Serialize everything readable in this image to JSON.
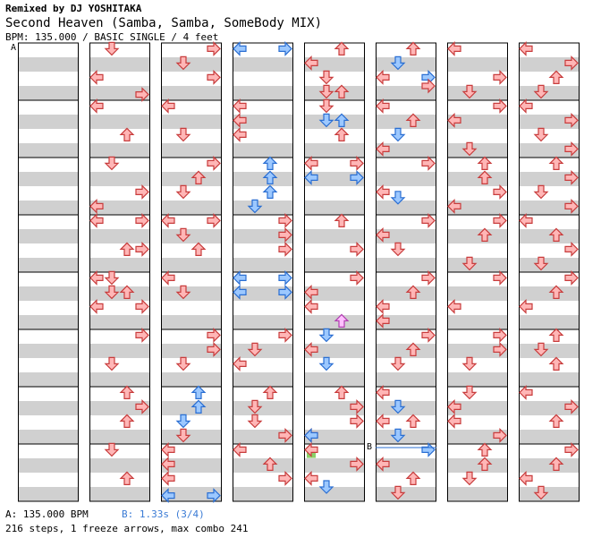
{
  "header": {
    "remix_line": "Remixed by DJ YOSHITAKA",
    "song_title": "Second Heaven (Samba, Samba, SomeBody MIX)",
    "chart_info": "BPM: 135.000 / BASIC SINGLE / 4 feet"
  },
  "markers": {
    "a": "A",
    "b": "B"
  },
  "footer": {
    "bpm_note": "A: 135.000 BPM",
    "stop_note": "B: 1.33s (3/4)",
    "stats": "216 steps, 1 freeze arrows, max combo 241"
  },
  "colors": {
    "quarter_fill": "#ffb6b6",
    "quarter_stroke": "#c83c3c",
    "eighth_fill": "#9cc8ff",
    "eighth_stroke": "#2a6ed2",
    "sixteenth_fill": "#ffc0ff",
    "sixteenth_stroke": "#b040b0",
    "freeze": "#8bd16a",
    "stripe": "#d0d0d0"
  },
  "icons": {
    "left": "left-arrow-icon",
    "down": "down-arrow-icon",
    "up": "up-arrow-icon",
    "right": "right-arrow-icon"
  },
  "chart_data": {
    "type": "step-chart",
    "columns": 8,
    "measures_per_column": 8,
    "lanes": [
      "left",
      "down",
      "up",
      "right"
    ],
    "note_format": "[column, measure_position, lane, kind]",
    "notes": [
      [
        1,
        0.1,
        "down",
        "q"
      ],
      [
        1,
        0.6,
        "left",
        "q"
      ],
      [
        1,
        0.9,
        "right",
        "q"
      ],
      [
        1,
        1.1,
        "left",
        "q"
      ],
      [
        1,
        1.6,
        "up",
        "q"
      ],
      [
        1,
        2.1,
        "down",
        "q"
      ],
      [
        1,
        2.6,
        "right",
        "q"
      ],
      [
        1,
        2.85,
        "left",
        "q"
      ],
      [
        1,
        3.1,
        "left",
        "q"
      ],
      [
        1,
        3.1,
        "right",
        "q"
      ],
      [
        1,
        3.6,
        "up",
        "q"
      ],
      [
        1,
        3.6,
        "right",
        "q"
      ],
      [
        1,
        4.1,
        "left",
        "q"
      ],
      [
        1,
        4.1,
        "down",
        "q"
      ],
      [
        1,
        4.35,
        "down",
        "q"
      ],
      [
        1,
        4.35,
        "up",
        "q"
      ],
      [
        1,
        4.6,
        "left",
        "q"
      ],
      [
        1,
        4.6,
        "right",
        "q"
      ],
      [
        1,
        5.1,
        "right",
        "q"
      ],
      [
        1,
        5.6,
        "down",
        "q"
      ],
      [
        1,
        6.1,
        "up",
        "q"
      ],
      [
        1,
        6.35,
        "right",
        "q"
      ],
      [
        1,
        6.6,
        "up",
        "q"
      ],
      [
        1,
        7.1,
        "down",
        "q"
      ],
      [
        1,
        7.6,
        "up",
        "q"
      ],
      [
        2,
        0.1,
        "right",
        "q"
      ],
      [
        2,
        0.35,
        "down",
        "q"
      ],
      [
        2,
        0.6,
        "right",
        "q"
      ],
      [
        2,
        1.1,
        "left",
        "q"
      ],
      [
        2,
        1.6,
        "down",
        "q"
      ],
      [
        2,
        2.1,
        "right",
        "q"
      ],
      [
        2,
        2.35,
        "up",
        "q"
      ],
      [
        2,
        2.6,
        "down",
        "q"
      ],
      [
        2,
        3.1,
        "left",
        "q"
      ],
      [
        2,
        3.1,
        "right",
        "q"
      ],
      [
        2,
        3.35,
        "down",
        "q"
      ],
      [
        2,
        3.6,
        "up",
        "q"
      ],
      [
        2,
        4.1,
        "left",
        "q"
      ],
      [
        2,
        4.35,
        "down",
        "q"
      ],
      [
        2,
        5.1,
        "right",
        "q"
      ],
      [
        2,
        5.35,
        "right",
        "q"
      ],
      [
        2,
        5.6,
        "down",
        "q"
      ],
      [
        2,
        6.1,
        "up",
        "e"
      ],
      [
        2,
        6.35,
        "up",
        "e"
      ],
      [
        2,
        6.6,
        "down",
        "e"
      ],
      [
        2,
        6.85,
        "down",
        "q"
      ],
      [
        2,
        7.1,
        "left",
        "q"
      ],
      [
        2,
        7.35,
        "left",
        "q"
      ],
      [
        2,
        7.6,
        "left",
        "q"
      ],
      [
        2,
        7.9,
        "left",
        "e"
      ],
      [
        2,
        7.9,
        "right",
        "e"
      ],
      [
        3,
        0.1,
        "left",
        "e"
      ],
      [
        3,
        0.1,
        "right",
        "e"
      ],
      [
        3,
        1.1,
        "left",
        "q"
      ],
      [
        3,
        1.35,
        "left",
        "q"
      ],
      [
        3,
        1.6,
        "left",
        "q"
      ],
      [
        3,
        2.1,
        "up",
        "e"
      ],
      [
        3,
        2.35,
        "up",
        "e"
      ],
      [
        3,
        2.6,
        "up",
        "e"
      ],
      [
        3,
        2.85,
        "down",
        "e"
      ],
      [
        3,
        3.1,
        "right",
        "q"
      ],
      [
        3,
        3.35,
        "right",
        "q"
      ],
      [
        3,
        3.6,
        "right",
        "q"
      ],
      [
        3,
        4.1,
        "left",
        "e"
      ],
      [
        3,
        4.1,
        "right",
        "e"
      ],
      [
        3,
        4.35,
        "left",
        "e"
      ],
      [
        3,
        4.35,
        "right",
        "e"
      ],
      [
        3,
        5.1,
        "right",
        "q"
      ],
      [
        3,
        5.35,
        "down",
        "q"
      ],
      [
        3,
        5.6,
        "left",
        "q"
      ],
      [
        3,
        6.1,
        "up",
        "q"
      ],
      [
        3,
        6.35,
        "down",
        "q"
      ],
      [
        3,
        6.6,
        "down",
        "q"
      ],
      [
        3,
        6.85,
        "right",
        "q"
      ],
      [
        3,
        7.1,
        "left",
        "q"
      ],
      [
        3,
        7.35,
        "up",
        "q"
      ],
      [
        3,
        7.6,
        "right",
        "q"
      ],
      [
        4,
        0.1,
        "up",
        "q"
      ],
      [
        4,
        0.35,
        "left",
        "q"
      ],
      [
        4,
        0.6,
        "down",
        "q"
      ],
      [
        4,
        0.85,
        "down",
        "q"
      ],
      [
        4,
        0.85,
        "up",
        "q"
      ],
      [
        4,
        1.1,
        "down",
        "q"
      ],
      [
        4,
        1.35,
        "down",
        "e"
      ],
      [
        4,
        1.35,
        "up",
        "e"
      ],
      [
        4,
        1.6,
        "up",
        "q"
      ],
      [
        4,
        2.1,
        "left",
        "q"
      ],
      [
        4,
        2.1,
        "right",
        "q"
      ],
      [
        4,
        2.35,
        "left",
        "e"
      ],
      [
        4,
        2.35,
        "right",
        "e"
      ],
      [
        4,
        3.1,
        "up",
        "q"
      ],
      [
        4,
        3.6,
        "right",
        "q"
      ],
      [
        4,
        4.1,
        "right",
        "q"
      ],
      [
        4,
        4.35,
        "left",
        "q"
      ],
      [
        4,
        4.6,
        "left",
        "q"
      ],
      [
        4,
        4.85,
        "up",
        "s"
      ],
      [
        4,
        5.1,
        "down",
        "e"
      ],
      [
        4,
        5.35,
        "left",
        "q"
      ],
      [
        4,
        5.6,
        "down",
        "e"
      ],
      [
        4,
        6.1,
        "up",
        "q"
      ],
      [
        4,
        6.35,
        "right",
        "q"
      ],
      [
        4,
        6.6,
        "right",
        "q"
      ],
      [
        4,
        6.85,
        "left",
        "q"
      ],
      [
        4,
        6.85,
        "left",
        "e"
      ],
      [
        4,
        7.1,
        "left",
        "q"
      ],
      [
        4,
        7.35,
        "right",
        "q"
      ],
      [
        4,
        7.6,
        "left",
        "q"
      ],
      [
        4,
        7.75,
        "down",
        "e"
      ],
      [
        5,
        0.1,
        "up",
        "q"
      ],
      [
        5,
        0.35,
        "down",
        "e"
      ],
      [
        5,
        0.6,
        "left",
        "q"
      ],
      [
        5,
        0.6,
        "right",
        "e"
      ],
      [
        5,
        0.75,
        "right",
        "q"
      ],
      [
        5,
        1.1,
        "left",
        "q"
      ],
      [
        5,
        1.35,
        "up",
        "q"
      ],
      [
        5,
        1.6,
        "down",
        "e"
      ],
      [
        5,
        1.85,
        "left",
        "q"
      ],
      [
        5,
        2.1,
        "right",
        "q"
      ],
      [
        5,
        2.6,
        "left",
        "q"
      ],
      [
        5,
        2.7,
        "down",
        "e"
      ],
      [
        5,
        3.1,
        "right",
        "q"
      ],
      [
        5,
        3.35,
        "left",
        "q"
      ],
      [
        5,
        3.6,
        "down",
        "q"
      ],
      [
        5,
        4.1,
        "right",
        "q"
      ],
      [
        5,
        4.35,
        "up",
        "q"
      ],
      [
        5,
        4.6,
        "left",
        "q"
      ],
      [
        5,
        4.85,
        "left",
        "q"
      ],
      [
        5,
        5.1,
        "right",
        "q"
      ],
      [
        5,
        5.35,
        "up",
        "q"
      ],
      [
        5,
        5.6,
        "down",
        "q"
      ],
      [
        5,
        6.1,
        "left",
        "q"
      ],
      [
        5,
        6.35,
        "down",
        "e"
      ],
      [
        5,
        6.6,
        "up",
        "q"
      ],
      [
        5,
        6.6,
        "left",
        "q"
      ],
      [
        5,
        6.85,
        "down",
        "e"
      ],
      [
        5,
        7.1,
        "right",
        "e"
      ],
      [
        5,
        7.35,
        "left",
        "q"
      ],
      [
        5,
        7.6,
        "up",
        "q"
      ],
      [
        5,
        7.85,
        "down",
        "q"
      ],
      [
        6,
        0.1,
        "left",
        "q"
      ],
      [
        6,
        0.6,
        "right",
        "q"
      ],
      [
        6,
        0.85,
        "down",
        "q"
      ],
      [
        6,
        1.1,
        "right",
        "q"
      ],
      [
        6,
        1.35,
        "left",
        "q"
      ],
      [
        6,
        1.85,
        "down",
        "q"
      ],
      [
        6,
        2.1,
        "up",
        "q"
      ],
      [
        6,
        2.35,
        "up",
        "q"
      ],
      [
        6,
        2.6,
        "right",
        "q"
      ],
      [
        6,
        2.85,
        "left",
        "q"
      ],
      [
        6,
        3.1,
        "right",
        "q"
      ],
      [
        6,
        3.35,
        "up",
        "q"
      ],
      [
        6,
        3.85,
        "down",
        "q"
      ],
      [
        6,
        4.1,
        "right",
        "q"
      ],
      [
        6,
        4.6,
        "left",
        "q"
      ],
      [
        6,
        5.1,
        "right",
        "q"
      ],
      [
        6,
        5.35,
        "right",
        "q"
      ],
      [
        6,
        5.6,
        "down",
        "q"
      ],
      [
        6,
        6.1,
        "down",
        "q"
      ],
      [
        6,
        6.35,
        "left",
        "q"
      ],
      [
        6,
        6.6,
        "left",
        "q"
      ],
      [
        6,
        6.85,
        "right",
        "q"
      ],
      [
        6,
        7.1,
        "up",
        "q"
      ],
      [
        6,
        7.35,
        "up",
        "q"
      ],
      [
        6,
        7.6,
        "down",
        "q"
      ],
      [
        7,
        0.1,
        "left",
        "q"
      ],
      [
        7,
        0.35,
        "right",
        "q"
      ],
      [
        7,
        0.6,
        "up",
        "q"
      ],
      [
        7,
        0.85,
        "down",
        "q"
      ],
      [
        7,
        1.1,
        "left",
        "q"
      ],
      [
        7,
        1.35,
        "right",
        "q"
      ],
      [
        7,
        1.6,
        "down",
        "q"
      ],
      [
        7,
        1.85,
        "right",
        "q"
      ],
      [
        7,
        2.1,
        "up",
        "q"
      ],
      [
        7,
        2.35,
        "right",
        "q"
      ],
      [
        7,
        2.6,
        "down",
        "q"
      ],
      [
        7,
        2.85,
        "right",
        "q"
      ],
      [
        7,
        3.1,
        "left",
        "q"
      ],
      [
        7,
        3.35,
        "up",
        "q"
      ],
      [
        7,
        3.6,
        "right",
        "q"
      ],
      [
        7,
        3.85,
        "down",
        "q"
      ],
      [
        7,
        4.1,
        "right",
        "q"
      ],
      [
        7,
        4.35,
        "up",
        "q"
      ],
      [
        7,
        4.6,
        "left",
        "q"
      ],
      [
        7,
        5.1,
        "up",
        "q"
      ],
      [
        7,
        5.35,
        "down",
        "q"
      ],
      [
        7,
        5.6,
        "up",
        "q"
      ],
      [
        7,
        6.1,
        "left",
        "q"
      ],
      [
        7,
        6.35,
        "right",
        "q"
      ],
      [
        7,
        6.6,
        "up",
        "q"
      ],
      [
        7,
        7.1,
        "right",
        "q"
      ],
      [
        7,
        7.35,
        "up",
        "q"
      ],
      [
        7,
        7.6,
        "left",
        "q"
      ],
      [
        7,
        7.85,
        "down",
        "q"
      ]
    ],
    "freeze_arrows": [
      [
        4,
        7.05,
        7.15,
        "left"
      ]
    ],
    "marker_positions": [
      {
        "label": "A",
        "column": 0,
        "measure": 0
      },
      {
        "label": "B",
        "column": 5,
        "measure": 7
      }
    ]
  }
}
